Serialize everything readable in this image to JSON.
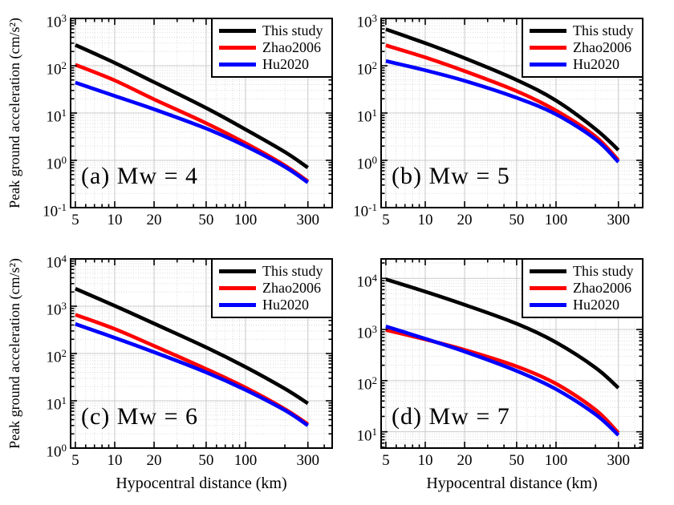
{
  "figure": {
    "ylabel": "Peak ground acceleration (cm/s²)",
    "xlabel": "Hypocentral distance (km)",
    "background": "#ffffff",
    "axis_color": "#000000",
    "grid_major_color": "#c9c9c9",
    "grid_minor_color": "#dbdbdb"
  },
  "legend": {
    "position": "top-right",
    "entries": [
      {
        "label": "This study",
        "color": "#000000"
      },
      {
        "label": "Zhao2006",
        "color": "#ff0000"
      },
      {
        "label": "Hu2020",
        "color": "#0000ff"
      }
    ]
  },
  "chart_data": [
    {
      "id": "a",
      "type": "line",
      "annotation": "(a) Mw = 4",
      "mw": 4,
      "xscale": "log",
      "yscale": "log",
      "xlim": [
        4.6,
        460
      ],
      "ylim": [
        0.1,
        1000
      ],
      "xticks": [
        5,
        10,
        20,
        50,
        100,
        300
      ],
      "ytick_exponents": [
        -1,
        0,
        1,
        2,
        3
      ],
      "x": [
        5,
        10,
        20,
        50,
        100,
        200,
        300
      ],
      "series": [
        {
          "name": "This study",
          "color": "#000000",
          "y": [
            275,
            115,
            45,
            12.8,
            4.5,
            1.5,
            0.7
          ]
        },
        {
          "name": "Zhao2006",
          "color": "#ff0000",
          "y": [
            105,
            49,
            19.5,
            6.1,
            2.3,
            0.78,
            0.36
          ]
        },
        {
          "name": "Hu2020",
          "color": "#0000ff",
          "y": [
            44,
            23,
            12,
            4.7,
            2.0,
            0.73,
            0.34
          ]
        }
      ]
    },
    {
      "id": "b",
      "type": "line",
      "annotation": "(b) Mw = 5",
      "mw": 5,
      "xscale": "log",
      "yscale": "log",
      "xlim": [
        4.6,
        460
      ],
      "ylim": [
        0.1,
        1000
      ],
      "xticks": [
        5,
        10,
        20,
        50,
        100,
        300
      ],
      "ytick_exponents": [
        -1,
        0,
        1,
        2,
        3
      ],
      "x": [
        5,
        10,
        20,
        50,
        100,
        200,
        300
      ],
      "series": [
        {
          "name": "This study",
          "color": "#000000",
          "y": [
            590,
            300,
            145,
            50,
            18.4,
            4.6,
            1.65
          ]
        },
        {
          "name": "Zhao2006",
          "color": "#ff0000",
          "y": [
            270,
            150,
            77,
            29,
            11.3,
            3.2,
            1.0
          ]
        },
        {
          "name": "Hu2020",
          "color": "#0000ff",
          "y": [
            126,
            80,
            48,
            21,
            9.4,
            2.8,
            0.92
          ]
        }
      ]
    },
    {
      "id": "c",
      "type": "line",
      "annotation": "(c) Mw = 6",
      "mw": 6,
      "xscale": "log",
      "yscale": "log",
      "xlim": [
        4.6,
        460
      ],
      "ylim": [
        1,
        10000
      ],
      "xticks": [
        5,
        10,
        20,
        50,
        100,
        300
      ],
      "ytick_exponents": [
        0,
        1,
        2,
        3,
        4
      ],
      "x": [
        5,
        10,
        20,
        50,
        100,
        200,
        300
      ],
      "series": [
        {
          "name": "This study",
          "color": "#000000",
          "y": [
            2350,
            1020,
            430,
            135,
            52,
            18,
            8.8
          ]
        },
        {
          "name": "Zhao2006",
          "color": "#ff0000",
          "y": [
            660,
            330,
            145,
            47,
            19,
            6.7,
            3.2
          ]
        },
        {
          "name": "Hu2020",
          "color": "#0000ff",
          "y": [
            420,
            215,
            107,
            40,
            17,
            6.3,
            3.0
          ]
        }
      ]
    },
    {
      "id": "d",
      "type": "line",
      "annotation": "(d) Mw = 7",
      "mw": 7,
      "xscale": "log",
      "yscale": "log",
      "xlim": [
        4.6,
        460
      ],
      "ylim": [
        4.8,
        24000
      ],
      "xticks": [
        5,
        10,
        20,
        50,
        100,
        300
      ],
      "ytick_exponents": [
        1,
        2,
        3,
        4
      ],
      "x": [
        5,
        10,
        20,
        50,
        100,
        200,
        300
      ],
      "series": [
        {
          "name": "This study",
          "color": "#000000",
          "y": [
            9600,
            5500,
            3050,
            1300,
            560,
            180,
            72
          ]
        },
        {
          "name": "Zhao2006",
          "color": "#ff0000",
          "y": [
            980,
            640,
            400,
            190,
            87,
            27,
            9.5
          ]
        },
        {
          "name": "Hu2020",
          "color": "#0000ff",
          "y": [
            1150,
            660,
            370,
            155,
            68,
            22,
            8.6
          ]
        }
      ]
    }
  ]
}
